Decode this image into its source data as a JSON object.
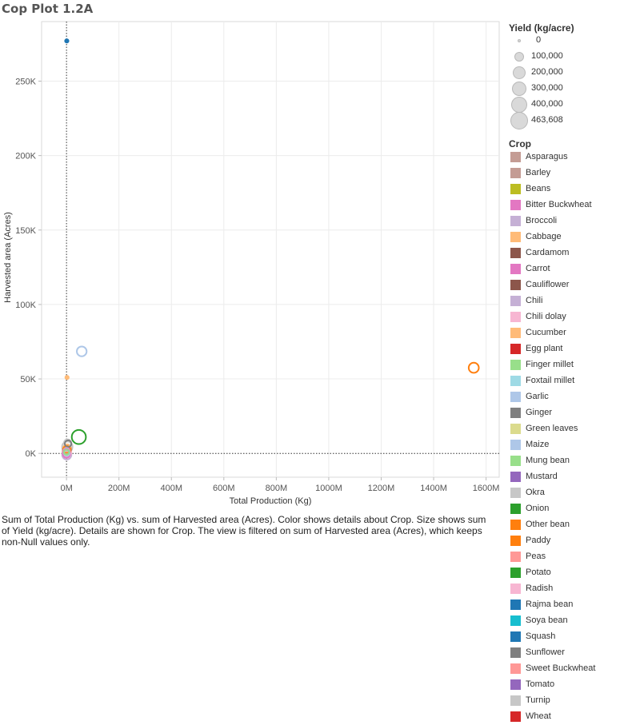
{
  "title": "Cop Plot 1.2A",
  "caption": "Sum of Total Production (Kg) vs. sum of Harvested area (Acres).  Color shows details about Crop.  Size shows sum of Yield (kg/acre).  Details are shown for Crop. The view is filtered on sum of Harvested area (Acres), which keeps non-Null values only.",
  "chart_data": {
    "type": "scatter",
    "title": "Cop Plot 1.2A",
    "xlabel": "Total Production (Kg)",
    "ylabel": "Harvested area (Acres)",
    "xlim": [
      -95,
      1650
    ],
    "ylim": [
      -16000,
      290000
    ],
    "x_ticks": [
      0,
      200,
      400,
      600,
      800,
      1000,
      1200,
      1400,
      1600
    ],
    "x_tick_labels": [
      "0M",
      "200M",
      "400M",
      "600M",
      "800M",
      "1000M",
      "1200M",
      "1400M",
      "1600M"
    ],
    "y_ticks": [
      0,
      50000,
      100000,
      150000,
      200000,
      250000
    ],
    "y_tick_labels": [
      "0K",
      "50K",
      "100K",
      "150K",
      "200K",
      "250K"
    ],
    "x_unit": "millions of kg",
    "grid": true,
    "legend_position": "right",
    "size_legend": {
      "title": "Yield (kg/acre)",
      "values": [
        0,
        100000,
        200000,
        300000,
        400000,
        463608
      ],
      "labels": [
        "0",
        "100,000",
        "200,000",
        "300,000",
        "400,000",
        "463,608"
      ]
    },
    "color_legend": {
      "title": "Crop",
      "entries": [
        {
          "name": "Asparagus",
          "color": "#c49c94"
        },
        {
          "name": "Barley",
          "color": "#c49c94"
        },
        {
          "name": "Beans",
          "color": "#bcbd22"
        },
        {
          "name": "Bitter Buckwheat",
          "color": "#e377c2"
        },
        {
          "name": "Broccoli",
          "color": "#c5b0d5"
        },
        {
          "name": "Cabbage",
          "color": "#ffbb78"
        },
        {
          "name": "Cardamom",
          "color": "#8c564b"
        },
        {
          "name": "Carrot",
          "color": "#e377c2"
        },
        {
          "name": "Cauliflower",
          "color": "#8c564b"
        },
        {
          "name": "Chili",
          "color": "#c5b0d5"
        },
        {
          "name": "Chili dolay",
          "color": "#f7b6d2"
        },
        {
          "name": "Cucumber",
          "color": "#ffbb78"
        },
        {
          "name": "Egg plant",
          "color": "#d62728"
        },
        {
          "name": "Finger millet",
          "color": "#98df8a"
        },
        {
          "name": "Foxtail millet",
          "color": "#9edae5"
        },
        {
          "name": "Garlic",
          "color": "#aec7e8"
        },
        {
          "name": "Ginger",
          "color": "#7f7f7f"
        },
        {
          "name": "Green leaves",
          "color": "#dbdb8d"
        },
        {
          "name": "Maize",
          "color": "#aec7e8"
        },
        {
          "name": "Mung bean",
          "color": "#98df8a"
        },
        {
          "name": "Mustard",
          "color": "#9467bd"
        },
        {
          "name": "Okra",
          "color": "#c7c7c7"
        },
        {
          "name": "Onion",
          "color": "#2ca02c"
        },
        {
          "name": "Other bean",
          "color": "#ff7f0e"
        },
        {
          "name": "Paddy",
          "color": "#ff7f0e"
        },
        {
          "name": "Peas",
          "color": "#ff9896"
        },
        {
          "name": "Potato",
          "color": "#2ca02c"
        },
        {
          "name": "Radish",
          "color": "#f7b6d2"
        },
        {
          "name": "Rajma bean",
          "color": "#1f77b4"
        },
        {
          "name": "Soya bean",
          "color": "#17becf"
        },
        {
          "name": "Squash",
          "color": "#1f77b4"
        },
        {
          "name": "Sunflower",
          "color": "#7f7f7f"
        },
        {
          "name": "Sweet Buckwheat",
          "color": "#ff9896"
        },
        {
          "name": "Tomato",
          "color": "#9467bd"
        },
        {
          "name": "Turnip",
          "color": "#c7c7c7"
        },
        {
          "name": "Wheat",
          "color": "#d62728"
        }
      ]
    },
    "points": [
      {
        "crop": "Squash",
        "x": 1,
        "y": 277000,
        "size": 3000,
        "color": "#1f77b4"
      },
      {
        "crop": "Maize",
        "x": 58,
        "y": 68500,
        "size": 110000,
        "color": "#aec7e8"
      },
      {
        "crop": "Cucumber",
        "x": 2,
        "y": 51000,
        "size": 3000,
        "color": "#ffbb78"
      },
      {
        "crop": "Paddy",
        "x": 1553,
        "y": 57500,
        "size": 120000,
        "color": "#ff7f0e"
      },
      {
        "crop": "Potato",
        "x": 47,
        "y": 11000,
        "size": 300000,
        "color": "#2ca02c"
      },
      {
        "crop": "Okra",
        "x": 3,
        "y": 4500,
        "size": 130000,
        "color": "#c7c7c7"
      },
      {
        "crop": "Turnip",
        "x": 4,
        "y": 7000,
        "size": 40000,
        "color": "#c7c7c7"
      },
      {
        "crop": "Ginger",
        "x": 6,
        "y": 6500,
        "size": 30000,
        "color": "#7f7f7f"
      },
      {
        "crop": "Sunflower",
        "x": 2,
        "y": 3000,
        "size": 60000,
        "color": "#7f7f7f"
      },
      {
        "crop": "Asparagus",
        "x": 2,
        "y": 2500,
        "size": 80000,
        "color": "#c49c94"
      },
      {
        "crop": "Barley",
        "x": 1,
        "y": 1000,
        "size": 70000,
        "color": "#c49c94"
      },
      {
        "crop": "Cabbage",
        "x": 2,
        "y": 3500,
        "size": 50000,
        "color": "#ffbb78"
      },
      {
        "crop": "Other bean",
        "x": 1,
        "y": 2500,
        "size": 40000,
        "color": "#ff7f0e"
      },
      {
        "crop": "Peas",
        "x": 1,
        "y": 1500,
        "size": 50000,
        "color": "#ff9896"
      },
      {
        "crop": "Radish",
        "x": 2,
        "y": 500,
        "size": 60000,
        "color": "#f7b6d2"
      },
      {
        "crop": "Chili",
        "x": 1,
        "y": -1000,
        "size": 90000,
        "color": "#c5b0d5"
      },
      {
        "crop": "Carrot",
        "x": 0,
        "y": 1000,
        "size": 20000,
        "color": "#e377c2"
      },
      {
        "crop": "Bitter Buckwheat",
        "x": 0,
        "y": -500,
        "size": 40000,
        "color": "#e377c2"
      },
      {
        "crop": "Garlic",
        "x": 1,
        "y": 200,
        "size": 15000,
        "color": "#aec7e8"
      },
      {
        "crop": "Broccoli",
        "x": 0,
        "y": 1500,
        "size": 25000,
        "color": "#c5b0d5"
      },
      {
        "crop": "Mung bean",
        "x": 0,
        "y": 800,
        "size": 10000,
        "color": "#98df8a"
      }
    ]
  }
}
